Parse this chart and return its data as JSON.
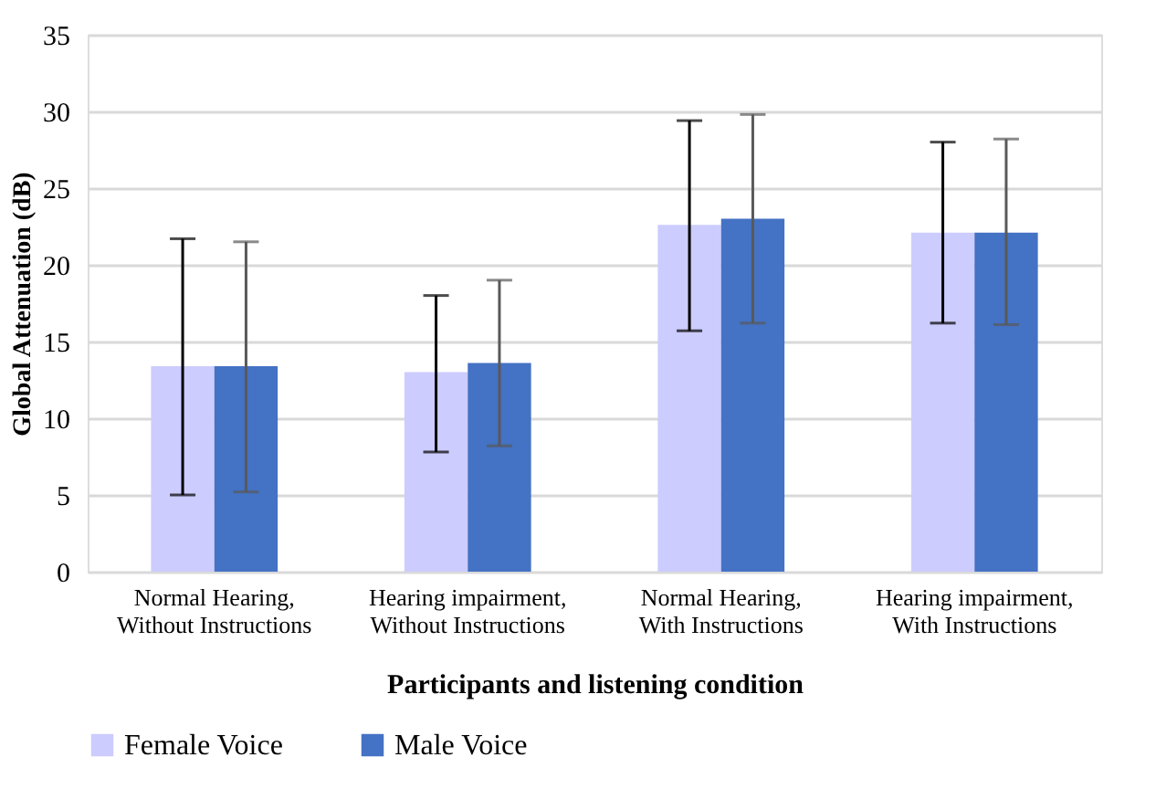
{
  "chart_data": {
    "type": "bar",
    "xlabel": "Participants and listening condition",
    "ylabel": "Global Attenuation (dB)",
    "categories": [
      "Normal Hearing,\nWithout Instructions",
      "Hearing impairment,\nWithout Instructions",
      "Normal Hearing,\nWith Instructions",
      "Hearing impairment,\nWith Instructions"
    ],
    "series": [
      {
        "name": "Female Voice",
        "color": "#ccccff",
        "values": [
          13.4,
          13.0,
          22.6,
          22.1
        ],
        "errors": [
          [
            5.0,
            21.7
          ],
          [
            7.8,
            18.0
          ],
          [
            15.7,
            29.4
          ],
          [
            16.2,
            28.0
          ]
        ]
      },
      {
        "name": "Male Voice",
        "color": "#4472c4",
        "values": [
          13.4,
          13.6,
          23.0,
          22.1
        ],
        "errors": [
          [
            5.2,
            21.5
          ],
          [
            8.2,
            19.0
          ],
          [
            16.2,
            29.8
          ],
          [
            16.1,
            28.2
          ]
        ]
      }
    ],
    "ylim": [
      0,
      35
    ],
    "yticks": [
      0,
      5,
      10,
      15,
      20,
      25,
      30,
      35
    ],
    "grid": "y",
    "legend": "bottom"
  }
}
